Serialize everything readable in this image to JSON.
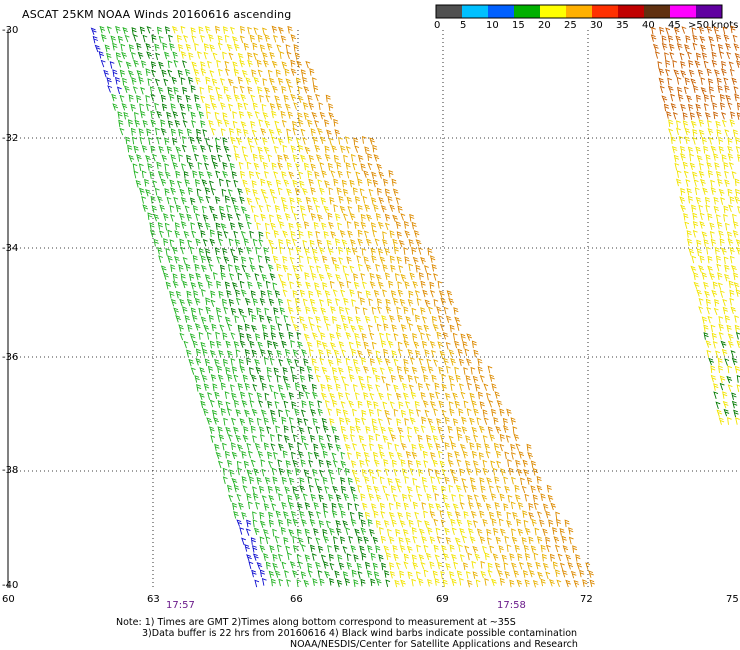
{
  "title": "ASCAT 25KM NOAA Winds 20160616 ascending",
  "legend": {
    "unit": "knots",
    "ticks": [
      "0",
      "5",
      "10",
      "15",
      "20",
      "25",
      "30",
      "35",
      "40",
      "45",
      ">50"
    ],
    "colors": [
      "#505050",
      "#00c0ff",
      "#0060ff",
      "#00b000",
      "#ffff00",
      "#ffb000",
      "#ff3000",
      "#c00000",
      "#603010",
      "#ff00ff",
      "#6000a0"
    ]
  },
  "axes": {
    "lat_labels": [
      "-30",
      "-32",
      "-34",
      "-36",
      "-38",
      "-40"
    ],
    "lon_labels": [
      "60",
      "63",
      "66",
      "69",
      "72",
      "75"
    ]
  },
  "times": [
    "17:57",
    "17:58"
  ],
  "notes": [
    "Note: 1) Times are GMT 2)Times along bottom correspond to measurement at ~35S",
    "3)Data buffer is 22 hrs from 20160616 4) Black wind barbs indicate possible contamination",
    "NOAA/NESDIS/Center for Satellite Applications and Research"
  ],
  "swath_colors": {
    "blue": "#1010d0",
    "green_dark": "#007a00",
    "green": "#22b222",
    "yellow": "#f2e400",
    "orange_light": "#e8b000",
    "orange": "#dc8a00",
    "orange_dark": "#c86000"
  }
}
